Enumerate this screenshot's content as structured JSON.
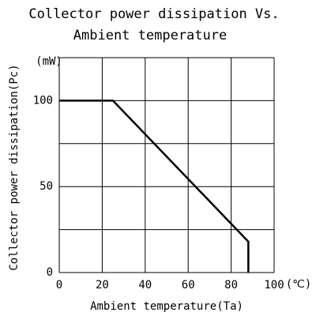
{
  "chart_data": {
    "type": "line",
    "title": [
      "Collector power dissipation Vs.",
      "Ambient temperature"
    ],
    "x_label": "Ambient temperature(Ta)",
    "y_label": "Collector power dissipation(Pc)",
    "x_unit": "(℃)",
    "y_unit": "(mW)",
    "x": [
      0,
      25,
      88,
      88
    ],
    "series": [
      {
        "color": "#000000",
        "values": [
          100,
          100,
          18,
          0
        ]
      }
    ],
    "xlim": [
      0,
      100
    ],
    "ylim": [
      0,
      125
    ],
    "xticks": [
      0,
      20,
      40,
      60,
      80,
      100
    ],
    "yticks": [
      0,
      50,
      100
    ],
    "ygrid": [
      0,
      25,
      50,
      75,
      100,
      125
    ],
    "grid": true
  }
}
